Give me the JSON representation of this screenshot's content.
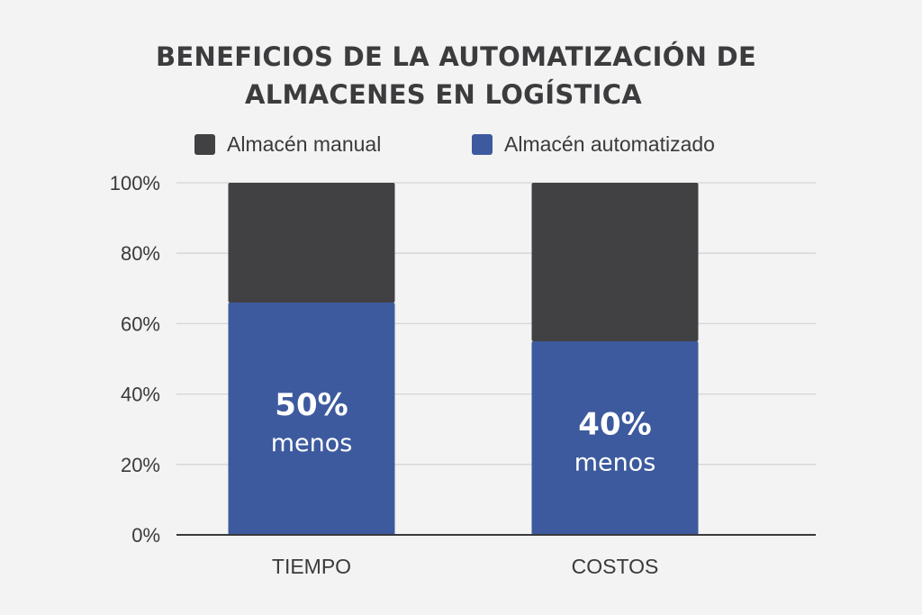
{
  "chart_data": {
    "type": "bar",
    "stacked": true,
    "title_lines": [
      "BENEFICIOS DE LA AUTOMATIZACIÓN DE",
      "ALMACENES EN LOGÍSTICA"
    ],
    "xlabel": "",
    "ylabel": "",
    "categories": [
      "TIEMPO",
      "COSTOS"
    ],
    "y_ticks": [
      "0%",
      "20%",
      "40%",
      "60%",
      "80%",
      "100%"
    ],
    "ylim": [
      0,
      100
    ],
    "grid": true,
    "legend_position": "top",
    "series": [
      {
        "name": "Almacén automatizado",
        "values": [
          66,
          55
        ],
        "color": "#3d5a9e"
      },
      {
        "name": "Almacén manual",
        "values": [
          34,
          45
        ],
        "color": "#414143"
      }
    ],
    "annotations": [
      {
        "category": "TIEMPO",
        "value": "50%",
        "text": "menos"
      },
      {
        "category": "COSTOS",
        "value": "40%",
        "text": "menos"
      }
    ]
  }
}
